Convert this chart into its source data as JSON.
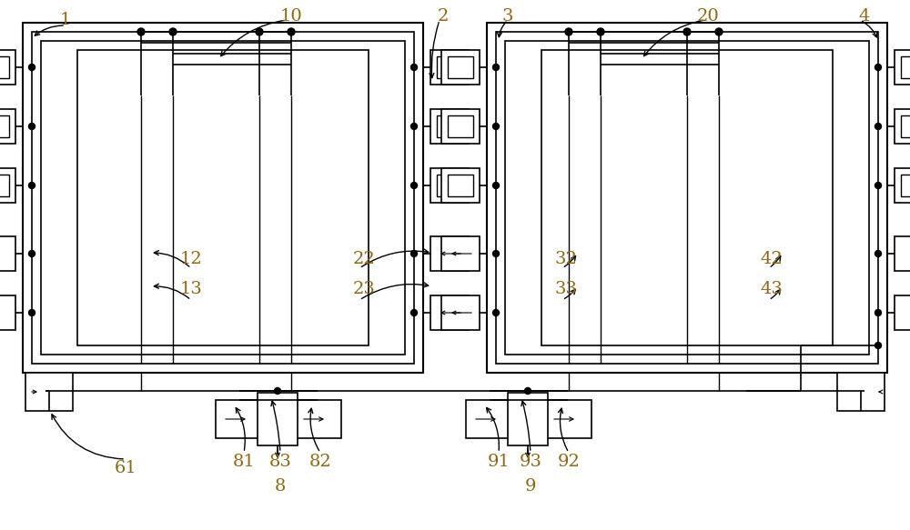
{
  "bg_color": "#ffffff",
  "line_color": "#000000",
  "label_color": "#8B6914",
  "fig_width": 10.0,
  "fig_height": 5.83
}
